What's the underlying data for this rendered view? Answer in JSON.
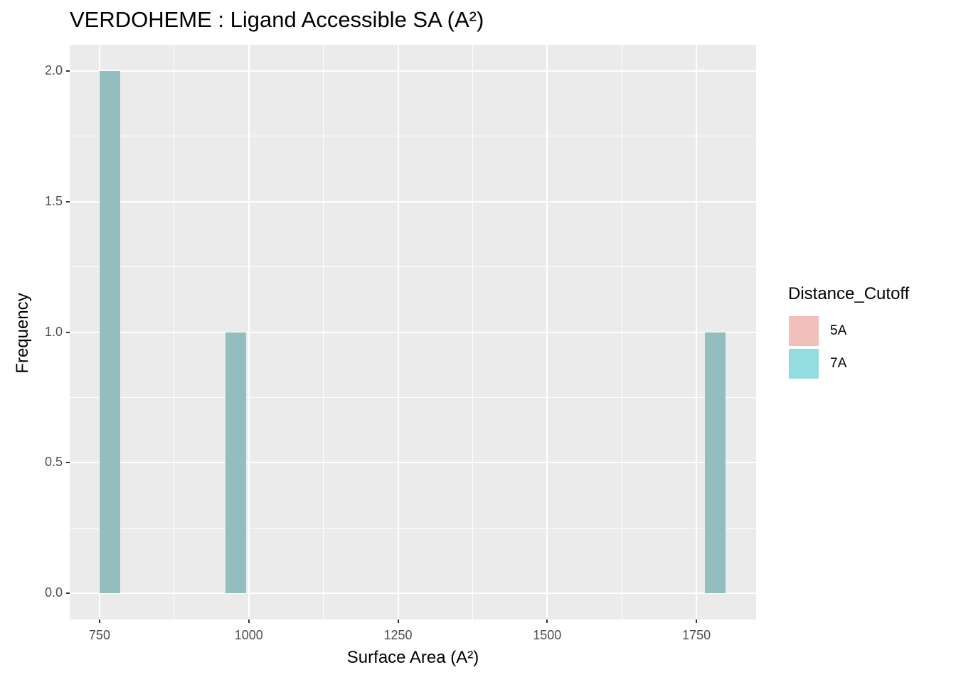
{
  "chart_data": {
    "type": "bar",
    "subtype": "histogram",
    "title": "VERDOHEME : Ligand Accessible SA (A²)",
    "xlabel": "Surface Area (A²)",
    "ylabel": "Frequency",
    "xlim": [
      700,
      1850
    ],
    "ylim": [
      -0.1,
      2.1
    ],
    "xticks": [
      750,
      1000,
      1250,
      1500,
      1750
    ],
    "xtick_labels": [
      "750",
      "1000",
      "1250",
      "1500",
      "1750"
    ],
    "yticks": [
      0.0,
      0.5,
      1.0,
      1.5,
      2.0
    ],
    "ytick_labels": [
      "0.0",
      "0.5",
      "1.0",
      "1.5",
      "2.0"
    ],
    "grid": true,
    "legend": {
      "title": "Distance_Cutoff",
      "position": "right",
      "entries": [
        {
          "label": "5A",
          "color": "#f2c0bc"
        },
        {
          "label": "7A",
          "color": "#93dde1"
        }
      ]
    },
    "series": [
      {
        "name": "5A",
        "bins": [],
        "color": "#F8766D"
      },
      {
        "name": "7A",
        "color": "#00BFC4",
        "bins": [
          {
            "x_start": 750,
            "x_end": 785,
            "count": 2
          },
          {
            "x_start": 961,
            "x_end": 996,
            "count": 1
          },
          {
            "x_start": 1764,
            "x_end": 1799,
            "count": 1
          }
        ]
      }
    ],
    "rendered_bar_color": "#93bebd"
  }
}
